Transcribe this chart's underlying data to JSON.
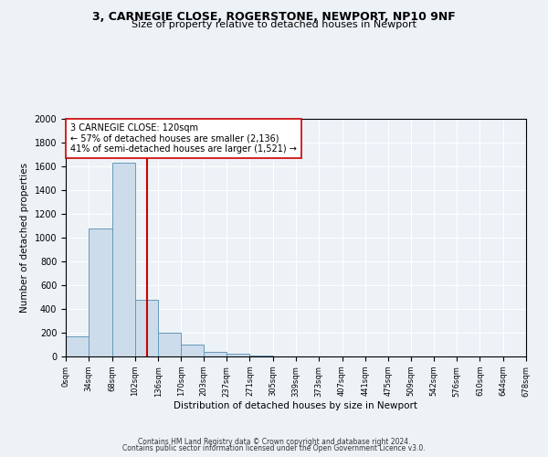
{
  "title_line1": "3, CARNEGIE CLOSE, ROGERSTONE, NEWPORT, NP10 9NF",
  "title_line2": "Size of property relative to detached houses in Newport",
  "xlabel": "Distribution of detached houses by size in Newport",
  "ylabel": "Number of detached properties",
  "bin_edges": [
    0,
    34,
    68,
    102,
    136,
    170,
    203,
    237,
    271,
    305,
    339,
    373,
    407,
    441,
    475,
    509,
    542,
    576,
    610,
    644,
    678
  ],
  "bin_counts": [
    170,
    1080,
    1630,
    480,
    200,
    100,
    35,
    20,
    10,
    0,
    0,
    0,
    0,
    0,
    0,
    0,
    0,
    0,
    0,
    0
  ],
  "bar_facecolor": "#cddceb",
  "bar_edgecolor": "#6699bb",
  "property_size": 120,
  "redline_color": "#cc0000",
  "annotation_text": "3 CARNEGIE CLOSE: 120sqm\n← 57% of detached houses are smaller (2,136)\n41% of semi-detached houses are larger (1,521) →",
  "annotation_boxcolor": "white",
  "annotation_boxedge": "#cc0000",
  "ylim": [
    0,
    2000
  ],
  "yticks": [
    0,
    200,
    400,
    600,
    800,
    1000,
    1200,
    1400,
    1600,
    1800,
    2000
  ],
  "tick_labels": [
    "0sqm",
    "34sqm",
    "68sqm",
    "102sqm",
    "136sqm",
    "170sqm",
    "203sqm",
    "237sqm",
    "271sqm",
    "305sqm",
    "339sqm",
    "373sqm",
    "407sqm",
    "441sqm",
    "475sqm",
    "509sqm",
    "542sqm",
    "576sqm",
    "610sqm",
    "644sqm",
    "678sqm"
  ],
  "footer_line1": "Contains HM Land Registry data © Crown copyright and database right 2024.",
  "footer_line2": "Contains public sector information licensed under the Open Government Licence v3.0.",
  "bg_color": "#edf2f7",
  "plot_bg_color": "#edf2f7",
  "grid_color": "white"
}
